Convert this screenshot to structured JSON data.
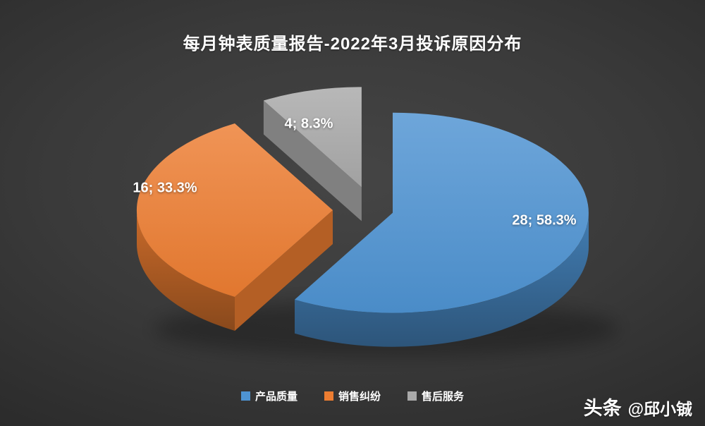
{
  "page": {
    "background": {
      "center_color": "#454545",
      "edge_color": "#262626"
    },
    "watermark": {
      "brand": "头条",
      "author": "@邱小铖"
    }
  },
  "chart_data": {
    "type": "pie",
    "style": "3d-exploded",
    "title": "每月钟表质量报告-2022年3月投诉原因分布",
    "categories": [
      "产品质量",
      "销售纠纷",
      "售后服务"
    ],
    "values": [
      28,
      16,
      4
    ],
    "percentages": [
      58.3,
      33.3,
      8.3
    ],
    "labels": [
      "28; 58.3%",
      "16; 33.3%",
      "4; 8.3%"
    ],
    "colors": [
      "#4e93d2",
      "#ed7d31",
      "#a9a9a9"
    ],
    "label_color": "#ffffff",
    "legend_position": "bottom",
    "start_angle_deg": 0,
    "clockwise": true
  }
}
